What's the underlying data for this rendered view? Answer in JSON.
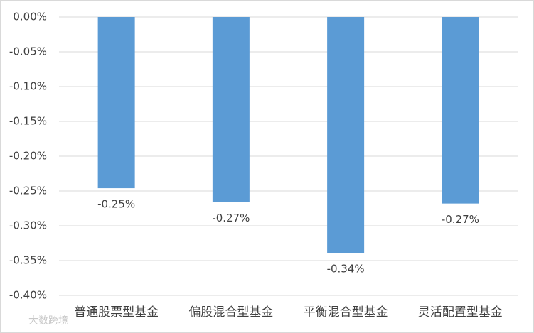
{
  "chart_data": {
    "type": "bar",
    "categories": [
      "普通股票型基金",
      "偏股混合型基金",
      "平衡混合型基金",
      "灵活配置型基金"
    ],
    "values": [
      -0.246,
      -0.266,
      -0.339,
      -0.268
    ],
    "value_labels": [
      "-0.25%",
      "-0.27%",
      "-0.34%",
      "-0.27%"
    ],
    "color": "#5b9bd5",
    "ylim": [
      -0.4,
      0
    ],
    "yticks": [
      {
        "value": 0,
        "label": "0.00%"
      },
      {
        "value": -0.05,
        "label": "-0.05%"
      },
      {
        "value": -0.1,
        "label": "-0.10%"
      },
      {
        "value": -0.15,
        "label": "-0.15%"
      },
      {
        "value": -0.2,
        "label": "-0.20%"
      },
      {
        "value": -0.25,
        "label": "-0.25%"
      },
      {
        "value": -0.3,
        "label": "-0.30%"
      },
      {
        "value": -0.35,
        "label": "-0.35%"
      },
      {
        "value": -0.4,
        "label": "-0.40%"
      }
    ],
    "grid": true,
    "watermark": "大数跨境"
  }
}
